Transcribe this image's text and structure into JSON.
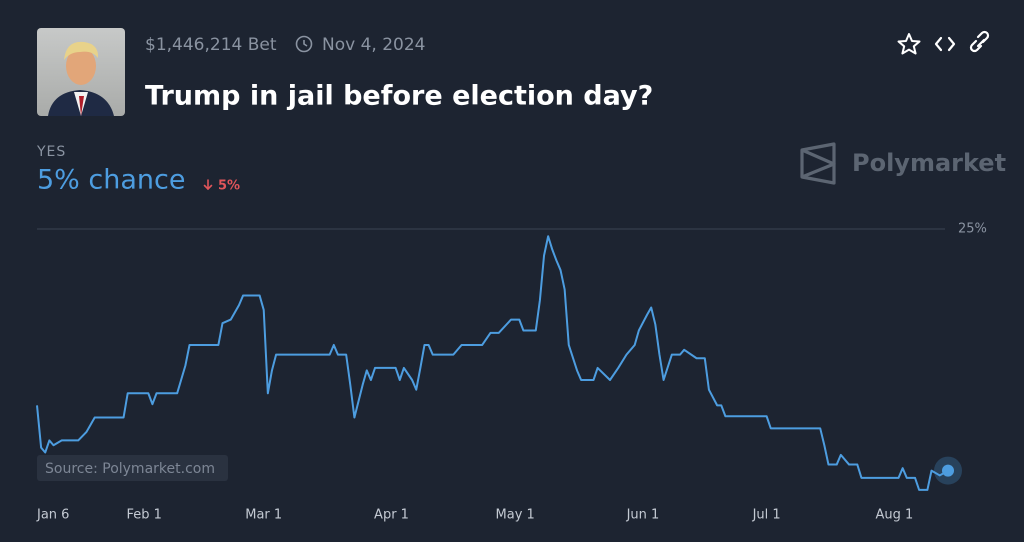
{
  "header": {
    "volume": "$1,446,214 Bet",
    "end_date": "Nov 4, 2024",
    "change": "5%",
    "chance": "5% chance",
    "brand": "Polymarket",
    "source": "Source: Polymarket.com"
  },
  "chart_data": {
    "type": "line",
    "title": "Trump in jail before election day?",
    "x": [
      "Jan 6",
      "Jan 7",
      "Jan 8",
      "Jan 9",
      "Jan 10",
      "Jan 12",
      "Jan 16",
      "Jan 18",
      "Jan 19",
      "Jan 20",
      "Jan 27",
      "Jan 28",
      "Feb 2",
      "Feb 3",
      "Feb 4",
      "Feb 9",
      "Feb 11",
      "Feb 12",
      "Feb 19",
      "Feb 20",
      "Feb 22",
      "Feb 24",
      "Feb 25",
      "Feb 29",
      "Mar 1",
      "Mar 2",
      "Mar 3",
      "Mar 4",
      "Mar 17",
      "Mar 18",
      "Mar 19",
      "Mar 21",
      "Mar 22",
      "Mar 23",
      "Mar 25",
      "Mar 26",
      "Mar 27",
      "Mar 28",
      "Apr 2",
      "Apr 3",
      "Apr 4",
      "Apr 6",
      "Apr 7",
      "Apr 8",
      "Apr 9",
      "Apr 10",
      "Apr 11",
      "Apr 16",
      "Apr 18",
      "Apr 23",
      "Apr 25",
      "Apr 27",
      "Apr 30",
      "May 2",
      "May 3",
      "May 6",
      "May 7",
      "May 8",
      "May 9",
      "May 10",
      "May 11",
      "May 12",
      "May 13",
      "May 14",
      "May 16",
      "May 17",
      "May 20",
      "May 21",
      "May 24",
      "May 26",
      "May 28",
      "May 30",
      "May 31",
      "Jun 2",
      "Jun 3",
      "Jun 4",
      "Jun 5",
      "Jun 6",
      "Jun 8",
      "Jun 10",
      "Jun 11",
      "Jun 14",
      "Jun 16",
      "Jun 17",
      "Jun 19",
      "Jun 20",
      "Jun 21",
      "Jul 1",
      "Jul 2",
      "Jul 14",
      "Jul 15",
      "Jul 16",
      "Jul 18",
      "Jul 19",
      "Jul 21",
      "Jul 23",
      "Jul 24",
      "Aug 2",
      "Aug 3",
      "Aug 4",
      "Aug 6",
      "Aug 7",
      "Aug 9",
      "Aug 10",
      "Aug 12",
      "Aug 14"
    ],
    "series": [
      {
        "name": "YES",
        "color": "#4d9de0",
        "values": [
          10.4,
          6.9,
          6.5,
          7.5,
          7.1,
          7.5,
          7.5,
          8.2,
          8.8,
          9.4,
          9.4,
          11.4,
          11.4,
          10.5,
          11.4,
          11.4,
          13.7,
          15.4,
          15.4,
          17.2,
          17.5,
          18.7,
          19.5,
          19.5,
          18.3,
          11.4,
          13.3,
          14.6,
          14.6,
          15.4,
          14.6,
          14.6,
          12.1,
          9.4,
          12.1,
          13.3,
          12.5,
          13.5,
          13.5,
          12.5,
          13.5,
          12.5,
          11.7,
          13.5,
          15.4,
          15.4,
          14.6,
          14.6,
          15.4,
          15.4,
          16.4,
          16.4,
          17.5,
          17.5,
          16.6,
          16.6,
          19.1,
          22.8,
          24.4,
          23.3,
          22.4,
          21.6,
          20.0,
          15.4,
          13.3,
          12.5,
          12.5,
          13.5,
          12.5,
          13.5,
          14.6,
          15.4,
          16.6,
          17.9,
          18.5,
          17.1,
          14.6,
          12.5,
          14.6,
          14.6,
          15.0,
          14.3,
          14.3,
          11.7,
          10.4,
          10.4,
          9.5,
          9.5,
          8.5,
          8.5,
          7.1,
          5.5,
          5.5,
          6.3,
          5.5,
          5.5,
          4.4,
          4.4,
          5.2,
          4.4,
          4.4,
          3.4,
          3.4,
          5.0,
          4.6,
          5.0
        ]
      }
    ],
    "xlim": [
      "Jan 6",
      "Aug 14"
    ],
    "xticks": [
      "Jan 6",
      "Feb 1",
      "Mar 1",
      "Apr 1",
      "May 1",
      "Jun 1",
      "Jul 1",
      "Aug 1"
    ],
    "ylim": [
      0,
      25
    ],
    "yticks": [
      {
        "value": 25,
        "label": "25%"
      }
    ],
    "grid": true
  }
}
